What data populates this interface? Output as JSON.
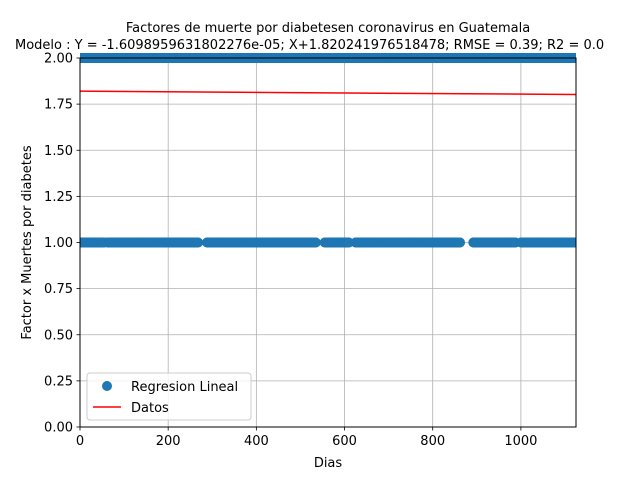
{
  "chart_data": {
    "type": "scatter",
    "title": "Factores de muerte por diabetesen coronavirus  en Guatemala",
    "subtitle": "Modelo : Y = -1.6098959631802276e-05; X+1.820241976518478; RMSE = 0.39; R2 = 0.0",
    "xlabel": "Dias",
    "ylabel": "Factor x Muertes por diabetes",
    "xlim": [
      0,
      1125
    ],
    "ylim": [
      0,
      2
    ],
    "x_ticks": [
      0,
      200,
      400,
      600,
      800,
      1000
    ],
    "x_tick_labels": [
      "0",
      "200",
      "400",
      "600",
      "800",
      "1000"
    ],
    "y_ticks": [
      0,
      0.25,
      0.5,
      0.75,
      1.0,
      1.25,
      1.5,
      1.75,
      2.0
    ],
    "y_tick_labels": [
      "0.00",
      "0.25",
      "0.50",
      "0.75",
      "1.00",
      "1.25",
      "1.50",
      "1.75",
      "2.00"
    ],
    "grid": true,
    "legend_position": "lower-left",
    "series": [
      {
        "name": "Regresion Lineal",
        "kind": "scatter",
        "color": "#1f77b4",
        "segments": [
          {
            "y": 2,
            "x_start": 0,
            "x_end": 1125
          },
          {
            "y": 1,
            "x_start": 0,
            "x_end": 55
          },
          {
            "y": 1,
            "x_start": 62,
            "x_end": 268
          },
          {
            "y": 1,
            "x_start": 288,
            "x_end": 535
          },
          {
            "y": 1,
            "x_start": 555,
            "x_end": 610
          },
          {
            "y": 1,
            "x_start": 625,
            "x_end": 862
          },
          {
            "y": 1,
            "x_start": 892,
            "x_end": 988
          },
          {
            "y": 1,
            "x_start": 1000,
            "x_end": 1125
          }
        ]
      },
      {
        "name": "Datos",
        "kind": "line",
        "color": "#ff0000",
        "x": [
          0,
          1125
        ],
        "y": [
          1.8202,
          1.8021
        ]
      }
    ]
  }
}
